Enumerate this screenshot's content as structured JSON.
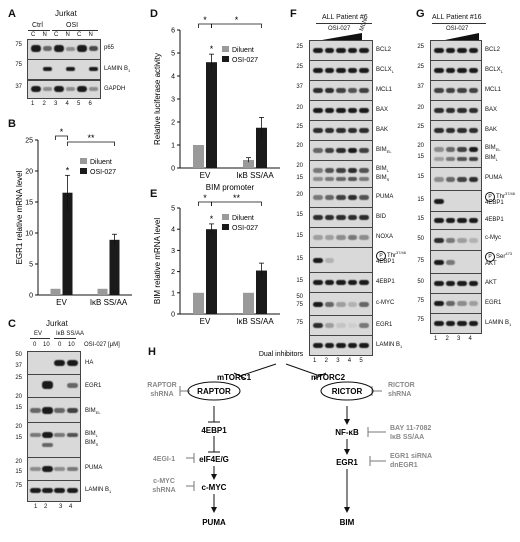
{
  "panels": {
    "A": {
      "letter": "A",
      "cell_line": "Jurkat",
      "groups": [
        "Ctrl",
        "OSI"
      ],
      "fractions": [
        "C",
        "N",
        "C",
        "N",
        "C",
        "N"
      ],
      "lanes": [
        "1",
        "2",
        "3",
        "4",
        "5",
        "6"
      ],
      "rows": [
        {
          "mw": "75",
          "label": "p65"
        },
        {
          "mw": "75",
          "label": "LAMIN Bsub"
        },
        {
          "mw": "37",
          "label": "GAPDH"
        }
      ],
      "lamin_label": "LAMIN B",
      "lamin_sub": "1"
    },
    "B": {
      "letter": "B"
    },
    "C": {
      "letter": "C",
      "cell_line": "Jurkat",
      "groups": [
        "EV",
        "IκB SS/AA"
      ],
      "dose_label": "OSI-027 [μM]",
      "doses": [
        "0",
        "10",
        "0",
        "10"
      ],
      "lanes": [
        "1",
        "2",
        "3",
        "4"
      ],
      "mw": [
        "50",
        "37",
        "25",
        "20",
        "15",
        "20",
        "15",
        "20",
        "15",
        "75"
      ],
      "labels": {
        "ha": "HA",
        "egr1": "EGR1",
        "bimel": "BIM",
        "bimel_sub": "EL",
        "biml": "BIM",
        "biml_sub": "L",
        "bims": "BIM",
        "bims_sub": "S",
        "puma": "PUMA",
        "lamin": "LAMIN B",
        "lamin_sub": "1"
      }
    },
    "D": {
      "letter": "D"
    },
    "E": {
      "letter": "E"
    },
    "F": {
      "letter": "F",
      "title": "ALL Patient #6",
      "treatment": "OSI-027",
      "extra": "MLN",
      "lanes": [
        "1",
        "2",
        "3",
        "4",
        "5"
      ],
      "mw": [
        "25",
        "25",
        "37",
        "20",
        "25",
        "20",
        "20",
        "15",
        "20",
        "15",
        "15",
        "15",
        "15",
        "50",
        "75",
        "75"
      ],
      "labels": {
        "bcl2": "BCL2",
        "bclx": "BCLX",
        "bclx_sub": "L",
        "mcl1": "MCL1",
        "bax": "BAX",
        "bak": "BAK",
        "bimel": "BIM",
        "bimel_sub": "EL",
        "biml": "BIM",
        "biml_sub": "L",
        "bims": "BIM",
        "bims_sub": "S",
        "puma": "PUMA",
        "bid": "BID",
        "noxa": "NOXA",
        "p_prefix": "P",
        "thr": "Thr",
        "thr_sup": "37/46",
        "ebp1": "4EBP1",
        "ebp1b": "4EBP1",
        "cmyc": "c-MYC",
        "egr1": "EGR1",
        "lamin": "LAMIN B",
        "lamin_sub": "1"
      }
    },
    "G": {
      "letter": "G",
      "title": "ALL Patient #16",
      "treatment": "OSI-027",
      "lanes": [
        "1",
        "2",
        "3",
        "4"
      ],
      "mw": [
        "25",
        "25",
        "37",
        "20",
        "25",
        "20",
        "15",
        "15",
        "15",
        "15",
        "50",
        "75",
        "50",
        "75",
        "75"
      ],
      "labels": {
        "bcl2": "BCL2",
        "bclx": "BCLX",
        "bclx_sub": "L",
        "mcl1": "MCL1",
        "bax": "BAX",
        "bak": "BAK",
        "bimel": "BIM",
        "bimel_sub": "EL",
        "biml": "BIM",
        "biml_sub": "L",
        "puma": "PUMA",
        "p_prefix": "P",
        "thr": "Thr",
        "thr_sup": "37/46",
        "ebp1_phospho": "4EBP1",
        "ebp1": "4EBP1",
        "cmyc": "c-Myc",
        "ser": "Ser",
        "ser_sup": "473",
        "akt_phospho": "AKT",
        "akt": "AKT",
        "egr1": "EGR1",
        "lamin": "LAMIN B",
        "lamin_sub": "1"
      }
    },
    "H": {
      "letter": "H",
      "top": "Dual inhibitors",
      "mtorc1": "mTORC1",
      "mtorc2": "mTORC2",
      "raptor": "RAPTOR",
      "rictor": "RICTOR",
      "raptor_shrna_1": "RAPTOR",
      "raptor_shrna_2": "shRNA",
      "rictor_shrna_1": "RICTOR",
      "rictor_shrna_2": "shRNA",
      "ebp1": "4EBP1",
      "nfkb": "NF-κB",
      "bay_1": "BAY 11-7082",
      "bay_2": "IκB SS/AA",
      "egi": "4EGI-1",
      "eif4eg": "eIF4E/G",
      "egr1": "EGR1",
      "egr1_si_1": "EGR1 siRNA",
      "egr1_si_2": "dnEGR1",
      "cmyc_sh_1": "c-MYC",
      "cmyc_sh_2": "shRNA",
      "cmyc": "c-MYC",
      "puma": "PUMA",
      "bim": "BIM"
    }
  },
  "chart_data": [
    {
      "id": "B",
      "type": "bar",
      "ylabel": "EGR1 relative mRNA level",
      "categories": [
        "EV",
        "IκB SS/AA"
      ],
      "series": [
        {
          "name": "Diluent",
          "values": [
            1,
            1
          ],
          "errors": [
            0,
            0
          ]
        },
        {
          "name": "OSI-027",
          "values": [
            16.5,
            8.9
          ],
          "errors": [
            2.8,
            0.9
          ]
        }
      ],
      "ylim": [
        0,
        25
      ],
      "yticks": [
        0,
        5,
        10,
        15,
        20,
        25
      ],
      "significance": [
        "*",
        "*",
        "**"
      ],
      "colors": {
        "Diluent": "#9a9a9a",
        "OSI-027": "#1a1a1a"
      }
    },
    {
      "id": "D",
      "type": "bar",
      "ylabel": "Relative luciferase activity",
      "xlabel": "BIM promoter",
      "categories": [
        "EV",
        "IκB SS/AA"
      ],
      "series": [
        {
          "name": "Diluent",
          "values": [
            1,
            0.35
          ],
          "errors": [
            0,
            0.1
          ]
        },
        {
          "name": "OSI-027",
          "values": [
            4.6,
            1.75
          ],
          "errors": [
            0.35,
            0.45
          ]
        }
      ],
      "ylim": [
        0,
        6
      ],
      "yticks": [
        0,
        1,
        2,
        3,
        4,
        5,
        6
      ],
      "significance": [
        "*",
        "*",
        "*"
      ],
      "colors": {
        "Diluent": "#9a9a9a",
        "OSI-027": "#1a1a1a"
      }
    },
    {
      "id": "E",
      "type": "bar",
      "ylabel": "BIM relative mRNA level",
      "categories": [
        "EV",
        "IκB SS/AA"
      ],
      "series": [
        {
          "name": "Diluent",
          "values": [
            1,
            1
          ],
          "errors": [
            0,
            0
          ]
        },
        {
          "name": "OSI-027",
          "values": [
            4.0,
            2.05
          ],
          "errors": [
            0.25,
            0.35
          ]
        }
      ],
      "ylim": [
        0,
        5
      ],
      "yticks": [
        0,
        1,
        2,
        3,
        4,
        5
      ],
      "significance": [
        "*",
        "*",
        "**"
      ],
      "colors": {
        "Diluent": "#9a9a9a",
        "OSI-027": "#1a1a1a"
      }
    }
  ]
}
